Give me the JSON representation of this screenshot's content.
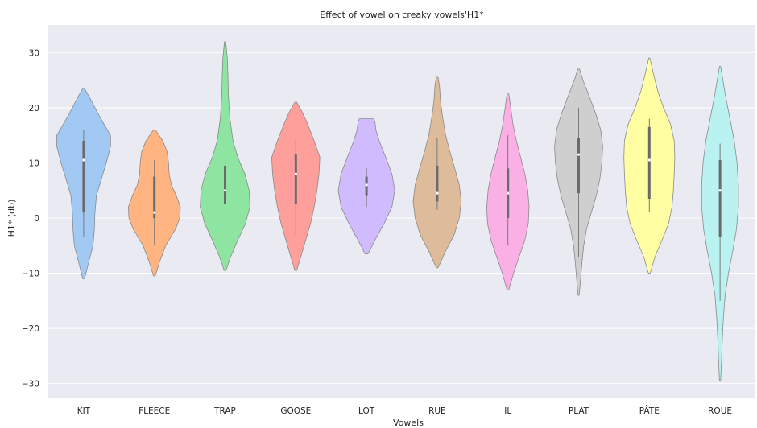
{
  "chart_data": {
    "type": "violin",
    "title": "Effect of vowel on creaky vowels'H1*",
    "xlabel": "Vowels",
    "ylabel": "H1* (db)",
    "ylim": [
      -33,
      34
    ],
    "yticks": [
      30,
      20,
      10,
      0,
      -10,
      -20,
      -30
    ],
    "ytick_labels": [
      "30",
      "20",
      "10",
      "0",
      "−10",
      "−20",
      "−30"
    ],
    "grid": true,
    "background": "#eaeaf2",
    "categories": [
      "KIT",
      "FLEECE",
      "TRAP",
      "GOOSE",
      "LOT",
      "RUE",
      "IL",
      "PLAT",
      "PÂTE",
      "ROUE"
    ],
    "series": [
      {
        "category": "KIT",
        "color": "#a1c9f4",
        "min": -11,
        "max": 23.5,
        "whisker_low": -3.5,
        "whisker_high": 16,
        "q1": 1,
        "median": 10.5,
        "q3": 14,
        "density": [
          [
            -11,
            0.03
          ],
          [
            -8,
            0.18
          ],
          [
            -5,
            0.33
          ],
          [
            -2,
            0.38
          ],
          [
            1,
            0.4
          ],
          [
            4,
            0.45
          ],
          [
            7,
            0.62
          ],
          [
            10,
            0.8
          ],
          [
            13,
            0.95
          ],
          [
            15,
            0.95
          ],
          [
            17,
            0.72
          ],
          [
            19,
            0.5
          ],
          [
            21,
            0.3
          ],
          [
            23.5,
            0.03
          ]
        ]
      },
      {
        "category": "FLEECE",
        "color": "#ffb482",
        "min": -10.5,
        "max": 16,
        "whisker_low": -5,
        "whisker_high": 10.5,
        "q1": 0,
        "median": 1,
        "q3": 7.5,
        "density": [
          [
            -10.5,
            0.03
          ],
          [
            -8,
            0.18
          ],
          [
            -5,
            0.4
          ],
          [
            -2,
            0.75
          ],
          [
            0,
            0.9
          ],
          [
            2,
            0.92
          ],
          [
            4,
            0.78
          ],
          [
            6,
            0.6
          ],
          [
            8,
            0.52
          ],
          [
            10,
            0.5
          ],
          [
            12,
            0.45
          ],
          [
            14,
            0.3
          ],
          [
            16,
            0.03
          ]
        ]
      },
      {
        "category": "TRAP",
        "color": "#8de5a1",
        "min": -9.5,
        "max": 32,
        "whisker_low": 0.5,
        "whisker_high": 14,
        "q1": 2.5,
        "median": 5,
        "q3": 9.5,
        "density": [
          [
            -9.5,
            0.03
          ],
          [
            -7,
            0.2
          ],
          [
            -4,
            0.45
          ],
          [
            -1,
            0.72
          ],
          [
            2,
            0.88
          ],
          [
            5,
            0.85
          ],
          [
            8,
            0.7
          ],
          [
            11,
            0.45
          ],
          [
            14,
            0.28
          ],
          [
            18,
            0.17
          ],
          [
            22,
            0.12
          ],
          [
            26,
            0.1
          ],
          [
            29,
            0.08
          ],
          [
            32,
            0.02
          ]
        ]
      },
      {
        "category": "GOOSE",
        "color": "#ff9f9b",
        "min": -9.5,
        "max": 21,
        "whisker_low": -3,
        "whisker_high": 14,
        "q1": 2.5,
        "median": 8,
        "q3": 11.5,
        "density": [
          [
            -9.5,
            0.03
          ],
          [
            -7,
            0.18
          ],
          [
            -4,
            0.35
          ],
          [
            -1,
            0.52
          ],
          [
            2,
            0.65
          ],
          [
            5,
            0.75
          ],
          [
            8,
            0.82
          ],
          [
            11,
            0.85
          ],
          [
            14,
            0.65
          ],
          [
            17,
            0.42
          ],
          [
            19,
            0.25
          ],
          [
            21,
            0.03
          ]
        ]
      },
      {
        "category": "LOT",
        "color": "#d0bbff",
        "min": -6.5,
        "max": 18,
        "whisker_low": 2,
        "whisker_high": 9,
        "q1": 4,
        "median": 6,
        "q3": 7.5,
        "density": [
          [
            -6.5,
            0.05
          ],
          [
            -4,
            0.3
          ],
          [
            -1,
            0.62
          ],
          [
            2,
            0.9
          ],
          [
            5,
            1.0
          ],
          [
            8,
            0.9
          ],
          [
            11,
            0.68
          ],
          [
            14,
            0.45
          ],
          [
            16,
            0.33
          ],
          [
            17.5,
            0.3
          ],
          [
            18,
            0.25
          ]
        ]
      },
      {
        "category": "RUE",
        "color": "#debb9b",
        "min": -9,
        "max": 25.5,
        "whisker_low": 1.5,
        "whisker_high": 14.5,
        "q1": 3,
        "median": 4.5,
        "q3": 9.5,
        "density": [
          [
            -9,
            0.03
          ],
          [
            -6,
            0.3
          ],
          [
            -3,
            0.6
          ],
          [
            0,
            0.78
          ],
          [
            3,
            0.85
          ],
          [
            6,
            0.78
          ],
          [
            9,
            0.62
          ],
          [
            12,
            0.45
          ],
          [
            15,
            0.3
          ],
          [
            18,
            0.2
          ],
          [
            21,
            0.12
          ],
          [
            24,
            0.08
          ],
          [
            25.5,
            0.03
          ]
        ]
      },
      {
        "category": "IL",
        "color": "#fab0e4",
        "min": -13,
        "max": 22.5,
        "whisker_low": -5,
        "whisker_high": 15,
        "q1": 0,
        "median": 4.5,
        "q3": 9,
        "density": [
          [
            -13,
            0.03
          ],
          [
            -10,
            0.2
          ],
          [
            -7,
            0.4
          ],
          [
            -4,
            0.6
          ],
          [
            -1,
            0.72
          ],
          [
            2,
            0.75
          ],
          [
            5,
            0.7
          ],
          [
            8,
            0.6
          ],
          [
            11,
            0.45
          ],
          [
            14,
            0.3
          ],
          [
            17,
            0.18
          ],
          [
            20,
            0.1
          ],
          [
            22.5,
            0.03
          ]
        ]
      },
      {
        "category": "PLAT",
        "color": "#cfcfcf",
        "min": -14,
        "max": 27,
        "whisker_low": -7,
        "whisker_high": 20,
        "q1": 4.5,
        "median": 11.5,
        "q3": 14.5,
        "density": [
          [
            -14,
            0.02
          ],
          [
            -11,
            0.07
          ],
          [
            -8,
            0.12
          ],
          [
            -5,
            0.18
          ],
          [
            -2,
            0.28
          ],
          [
            1,
            0.45
          ],
          [
            4,
            0.62
          ],
          [
            7,
            0.75
          ],
          [
            10,
            0.82
          ],
          [
            13,
            0.85
          ],
          [
            16,
            0.78
          ],
          [
            19,
            0.6
          ],
          [
            22,
            0.38
          ],
          [
            25,
            0.15
          ],
          [
            27,
            0.03
          ]
        ]
      },
      {
        "category": "PÂTE",
        "color": "#fffea3",
        "min": -10,
        "max": 29,
        "whisker_low": 1,
        "whisker_high": 18,
        "q1": 3.5,
        "median": 10.5,
        "q3": 16.5,
        "density": [
          [
            -10,
            0.03
          ],
          [
            -7,
            0.2
          ],
          [
            -4,
            0.45
          ],
          [
            -1,
            0.68
          ],
          [
            2,
            0.8
          ],
          [
            5,
            0.85
          ],
          [
            8,
            0.88
          ],
          [
            11,
            0.9
          ],
          [
            14,
            0.88
          ],
          [
            17,
            0.75
          ],
          [
            20,
            0.5
          ],
          [
            23,
            0.3
          ],
          [
            26,
            0.15
          ],
          [
            29,
            0.02
          ]
        ]
      },
      {
        "category": "ROUE",
        "color": "#b9f2f0",
        "min": -29.5,
        "max": 27.5,
        "whisker_low": -15,
        "whisker_high": 13.5,
        "q1": -3.5,
        "median": 5,
        "q3": 10.5,
        "density": [
          [
            -29.5,
            0.02
          ],
          [
            -26,
            0.05
          ],
          [
            -22,
            0.08
          ],
          [
            -18,
            0.12
          ],
          [
            -14,
            0.18
          ],
          [
            -10,
            0.3
          ],
          [
            -6,
            0.45
          ],
          [
            -2,
            0.58
          ],
          [
            2,
            0.65
          ],
          [
            6,
            0.65
          ],
          [
            10,
            0.6
          ],
          [
            14,
            0.5
          ],
          [
            18,
            0.35
          ],
          [
            22,
            0.2
          ],
          [
            25,
            0.1
          ],
          [
            27.5,
            0.02
          ]
        ]
      }
    ]
  }
}
